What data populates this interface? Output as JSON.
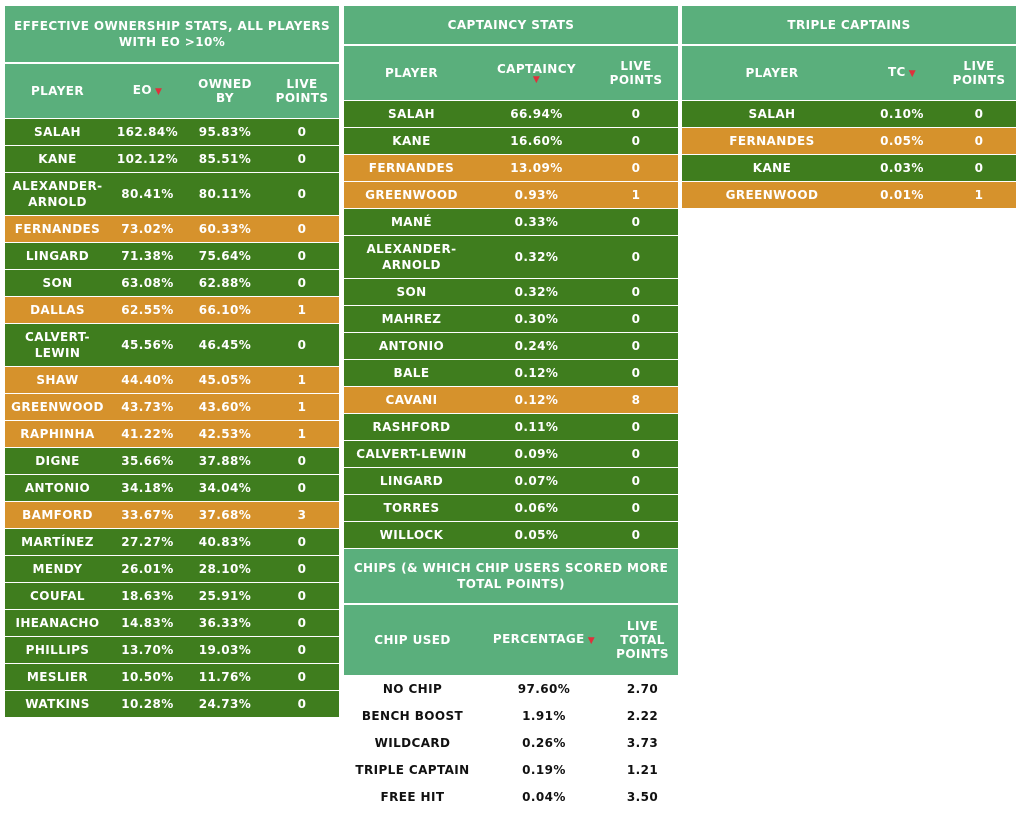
{
  "eo": {
    "title": "EFFECTIVE OWNERSHIP STATS, ALL PLAYERS WITH EO >10%",
    "headers": [
      "PLAYER",
      "EO",
      "OWNED BY",
      "LIVE POINTS"
    ],
    "rows": [
      {
        "player": "SALAH",
        "eo": "162.84%",
        "owned": "95.83%",
        "pts": "0",
        "color": "green",
        "tall": false
      },
      {
        "player": "KANE",
        "eo": "102.12%",
        "owned": "85.51%",
        "pts": "0",
        "color": "green",
        "tall": false
      },
      {
        "player": "ALEXANDER-ARNOLD",
        "eo": "80.41%",
        "owned": "80.11%",
        "pts": "0",
        "color": "green",
        "tall": true
      },
      {
        "player": "FERNANDES",
        "eo": "73.02%",
        "owned": "60.33%",
        "pts": "0",
        "color": "orange",
        "tall": false
      },
      {
        "player": "LINGARD",
        "eo": "71.38%",
        "owned": "75.64%",
        "pts": "0",
        "color": "green",
        "tall": false
      },
      {
        "player": "SON",
        "eo": "63.08%",
        "owned": "62.88%",
        "pts": "0",
        "color": "green",
        "tall": false
      },
      {
        "player": "DALLAS",
        "eo": "62.55%",
        "owned": "66.10%",
        "pts": "1",
        "color": "orange",
        "tall": false
      },
      {
        "player": "CALVERT-LEWIN",
        "eo": "45.56%",
        "owned": "46.45%",
        "pts": "0",
        "color": "green",
        "tall": true
      },
      {
        "player": "SHAW",
        "eo": "44.40%",
        "owned": "45.05%",
        "pts": "1",
        "color": "orange",
        "tall": false
      },
      {
        "player": "GREENWOOD",
        "eo": "43.73%",
        "owned": "43.60%",
        "pts": "1",
        "color": "orange",
        "tall": false
      },
      {
        "player": "RAPHINHA",
        "eo": "41.22%",
        "owned": "42.53%",
        "pts": "1",
        "color": "orange",
        "tall": false
      },
      {
        "player": "DIGNE",
        "eo": "35.66%",
        "owned": "37.88%",
        "pts": "0",
        "color": "green",
        "tall": false
      },
      {
        "player": "ANTONIO",
        "eo": "34.18%",
        "owned": "34.04%",
        "pts": "0",
        "color": "green",
        "tall": false
      },
      {
        "player": "BAMFORD",
        "eo": "33.67%",
        "owned": "37.68%",
        "pts": "3",
        "color": "orange",
        "tall": false
      },
      {
        "player": "MARTÍNEZ",
        "eo": "27.27%",
        "owned": "40.83%",
        "pts": "0",
        "color": "green",
        "tall": false
      },
      {
        "player": "MENDY",
        "eo": "26.01%",
        "owned": "28.10%",
        "pts": "0",
        "color": "green",
        "tall": false
      },
      {
        "player": "COUFAL",
        "eo": "18.63%",
        "owned": "25.91%",
        "pts": "0",
        "color": "green",
        "tall": false
      },
      {
        "player": "IHEANACHO",
        "eo": "14.83%",
        "owned": "36.33%",
        "pts": "0",
        "color": "green",
        "tall": false
      },
      {
        "player": "PHILLIPS",
        "eo": "13.70%",
        "owned": "19.03%",
        "pts": "0",
        "color": "green",
        "tall": false
      },
      {
        "player": "MESLIER",
        "eo": "10.50%",
        "owned": "11.76%",
        "pts": "0",
        "color": "green",
        "tall": false
      },
      {
        "player": "WATKINS",
        "eo": "10.28%",
        "owned": "24.73%",
        "pts": "0",
        "color": "green",
        "tall": false
      }
    ]
  },
  "captaincy": {
    "title": "CAPTAINCY STATS",
    "headers": [
      "PLAYER",
      "CAPTAINCY",
      "LIVE POINTS"
    ],
    "rows": [
      {
        "player": "SALAH",
        "value": "66.94%",
        "pts": "0",
        "color": "green",
        "tall": false
      },
      {
        "player": "KANE",
        "value": "16.60%",
        "pts": "0",
        "color": "green",
        "tall": false
      },
      {
        "player": "FERNANDES",
        "value": "13.09%",
        "pts": "0",
        "color": "orange",
        "tall": false
      },
      {
        "player": "GREENWOOD",
        "value": "0.93%",
        "pts": "1",
        "color": "orange",
        "tall": false
      },
      {
        "player": "MANÉ",
        "value": "0.33%",
        "pts": "0",
        "color": "green",
        "tall": false
      },
      {
        "player": "ALEXANDER-ARNOLD",
        "value": "0.32%",
        "pts": "0",
        "color": "green",
        "tall": true
      },
      {
        "player": "SON",
        "value": "0.32%",
        "pts": "0",
        "color": "green",
        "tall": false
      },
      {
        "player": "MAHREZ",
        "value": "0.30%",
        "pts": "0",
        "color": "green",
        "tall": false
      },
      {
        "player": "ANTONIO",
        "value": "0.24%",
        "pts": "0",
        "color": "green",
        "tall": false
      },
      {
        "player": "BALE",
        "value": "0.12%",
        "pts": "0",
        "color": "green",
        "tall": false
      },
      {
        "player": "CAVANI",
        "value": "0.12%",
        "pts": "8",
        "color": "orange",
        "tall": false
      },
      {
        "player": "RASHFORD",
        "value": "0.11%",
        "pts": "0",
        "color": "green",
        "tall": false
      },
      {
        "player": "CALVERT-LEWIN",
        "value": "0.09%",
        "pts": "0",
        "color": "green",
        "tall": false
      },
      {
        "player": "LINGARD",
        "value": "0.07%",
        "pts": "0",
        "color": "green",
        "tall": false
      },
      {
        "player": "TORRES",
        "value": "0.06%",
        "pts": "0",
        "color": "green",
        "tall": false
      },
      {
        "player": "WILLOCK",
        "value": "0.05%",
        "pts": "0",
        "color": "green",
        "tall": false
      }
    ]
  },
  "triple": {
    "title": "TRIPLE CAPTAINS",
    "headers": [
      "PLAYER",
      "TC",
      "LIVE POINTS"
    ],
    "rows": [
      {
        "player": "SALAH",
        "value": "0.10%",
        "pts": "0",
        "color": "green",
        "tall": false
      },
      {
        "player": "FERNANDES",
        "value": "0.05%",
        "pts": "0",
        "color": "orange",
        "tall": false
      },
      {
        "player": "KANE",
        "value": "0.03%",
        "pts": "0",
        "color": "green",
        "tall": false
      },
      {
        "player": "GREENWOOD",
        "value": "0.01%",
        "pts": "1",
        "color": "orange",
        "tall": false
      }
    ]
  },
  "chips": {
    "title": "CHIPS (& WHICH CHIP USERS SCORED MORE TOTAL POINTS)",
    "headers": [
      "CHIP USED",
      "PERCENTAGE",
      "LIVE TOTAL POINTS"
    ],
    "rows": [
      {
        "player": "NO CHIP",
        "value": "97.60%",
        "pts": "2.70",
        "color": "white",
        "tall": false
      },
      {
        "player": "BENCH BOOST",
        "value": "1.91%",
        "pts": "2.22",
        "color": "white",
        "tall": false
      },
      {
        "player": "WILDCARD",
        "value": "0.26%",
        "pts": "3.73",
        "color": "white",
        "tall": false
      },
      {
        "player": "TRIPLE CAPTAIN",
        "value": "0.19%",
        "pts": "1.21",
        "color": "white",
        "tall": false
      },
      {
        "player": "FREE HIT",
        "value": "0.04%",
        "pts": "3.50",
        "color": "white",
        "tall": false
      }
    ]
  },
  "colors": {
    "header": "#5aaf7c",
    "green": "#3f7d1e",
    "orange": "#d6922c",
    "sort_arrow": "#e0303c"
  },
  "icons": {
    "sort": "sort-desc-icon"
  }
}
